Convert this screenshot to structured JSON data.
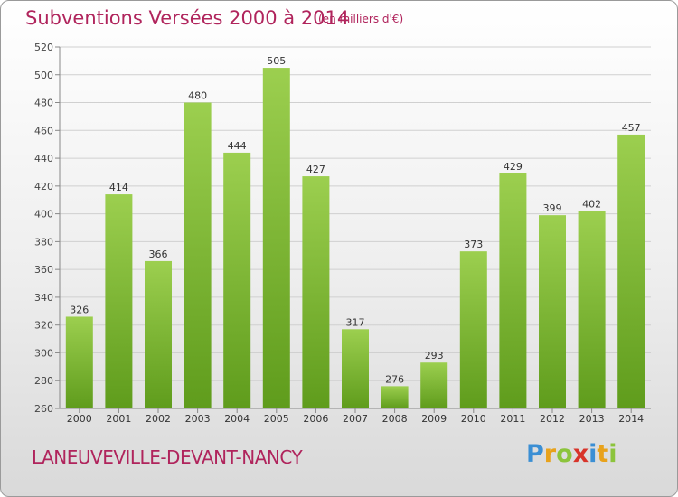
{
  "header": {
    "title": "Subventions Versées 2000 à 2014",
    "unit": "(en milliers d'€)"
  },
  "footer": {
    "commune": "LANEUVEVILLE-DEVANT-NANCY",
    "logo_letters": [
      {
        "char": "P",
        "color": "#3b8fd4"
      },
      {
        "char": "r",
        "color": "#e8a21b"
      },
      {
        "char": "o",
        "color": "#8cc43c"
      },
      {
        "char": "x",
        "color": "#d8342a"
      },
      {
        "char": "i",
        "color": "#3b8fd4"
      },
      {
        "char": "t",
        "color": "#e8a21b"
      },
      {
        "char": "i",
        "color": "#8cc43c"
      }
    ]
  },
  "colors": {
    "title": "#b0245c",
    "bar_light": "#9ccf4f",
    "bar_dark": "#5f9c1c",
    "grid": "#d0d0d0"
  },
  "chart_data": {
    "type": "bar",
    "title": "Subventions Versées 2000 à 2014",
    "subtitle": "(en milliers d'€)",
    "xlabel": "",
    "ylabel": "",
    "categories": [
      "2000",
      "2001",
      "2002",
      "2003",
      "2004",
      "2005",
      "2006",
      "2007",
      "2008",
      "2009",
      "2010",
      "2011",
      "2012",
      "2013",
      "2014"
    ],
    "values": [
      326,
      414,
      366,
      480,
      444,
      505,
      427,
      317,
      276,
      293,
      373,
      429,
      399,
      402,
      457
    ],
    "ylim": [
      260,
      520
    ],
    "yticks": [
      260,
      280,
      300,
      320,
      340,
      360,
      380,
      400,
      420,
      440,
      460,
      480,
      500,
      520
    ],
    "grid": true,
    "legend": "none"
  }
}
